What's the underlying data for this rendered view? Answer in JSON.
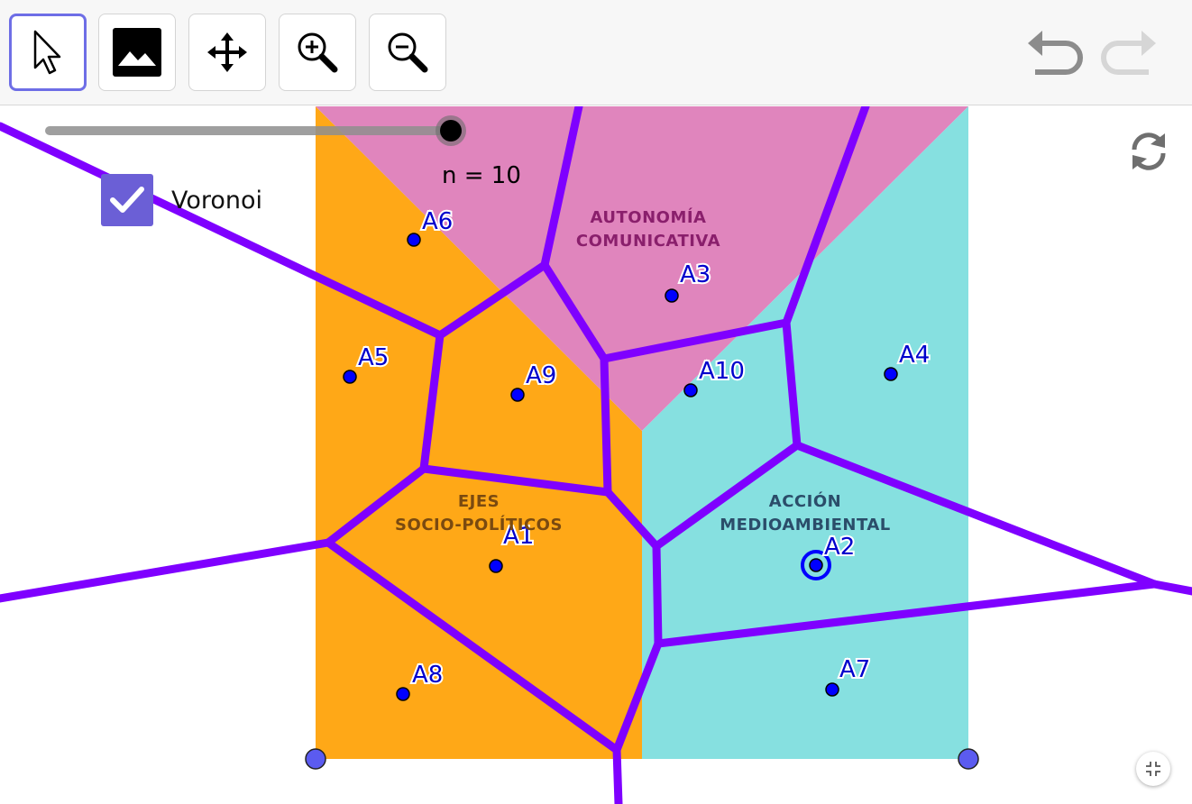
{
  "toolbar": {
    "tools": [
      {
        "name": "move-tool",
        "icon": "arrow-cursor-icon",
        "selected": true
      },
      {
        "name": "image-tool",
        "icon": "image-icon",
        "selected": false
      },
      {
        "name": "move-graphics-view-tool",
        "icon": "four-arrows-icon",
        "selected": false
      },
      {
        "name": "zoom-in-tool",
        "icon": "zoom-in-icon",
        "selected": false
      },
      {
        "name": "zoom-out-tool",
        "icon": "zoom-out-icon",
        "selected": false
      }
    ],
    "undo": {
      "icon": "undo-icon",
      "enabled": true
    },
    "redo": {
      "icon": "redo-icon",
      "enabled": false
    }
  },
  "slider": {
    "label": "n = 10",
    "value": 10,
    "fraction": 1.0
  },
  "voronoi_toggle": {
    "label": "Voronoi",
    "checked": true
  },
  "regions": {
    "autonomia": {
      "line1": "AUTONOMÍA",
      "line2": "COMUNICATIVA",
      "color": "#e085bd",
      "text_color": "#8a1f6c"
    },
    "ejes": {
      "line1": "EJES",
      "line2": "SOCIO-POLÍTICOS",
      "color": "#ffa817",
      "text_color": "#7a4a10"
    },
    "accion": {
      "line1": "ACCIÓN",
      "line2": "MEDIOAMBIENTAL",
      "color": "#86e0e0",
      "text_color": "#2b4d6a"
    }
  },
  "points": [
    {
      "label": "A1"
    },
    {
      "label": "A2"
    },
    {
      "label": "A3"
    },
    {
      "label": "A4"
    },
    {
      "label": "A5"
    },
    {
      "label": "A6"
    },
    {
      "label": "A7"
    },
    {
      "label": "A8"
    },
    {
      "label": "A9"
    },
    {
      "label": "A10"
    }
  ],
  "colors": {
    "voronoi_edge": "#7f00ff",
    "point": "#0000ff",
    "corner_point": "#5b5bf0",
    "point_label": "#0000cc"
  }
}
